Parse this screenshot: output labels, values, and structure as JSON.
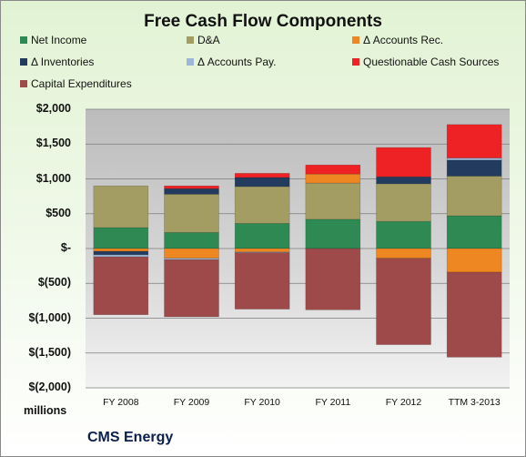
{
  "chart_data": {
    "type": "bar",
    "stacked": true,
    "title": "Free Cash Flow Components",
    "units_label": "millions",
    "company": "CMS Energy",
    "categories": [
      "FY 2008",
      "FY 2009",
      "FY 2010",
      "FY 2011",
      "FY 2012",
      "TTM 3-2013"
    ],
    "ylim": [
      -2000,
      2000
    ],
    "yticks": [
      {
        "value": 2000,
        "label": "$2,000"
      },
      {
        "value": 1500,
        "label": "$1,500"
      },
      {
        "value": 1000,
        "label": "$1,000"
      },
      {
        "value": 500,
        "label": "$500"
      },
      {
        "value": 0,
        "label": "$-"
      },
      {
        "value": -500,
        "label": "$(500)"
      },
      {
        "value": -1000,
        "label": "$(1,000)"
      },
      {
        "value": -1500,
        "label": "$(1,500)"
      },
      {
        "value": -2000,
        "label": "$(2,000)"
      }
    ],
    "grid": true,
    "legend_position": "top",
    "series": [
      {
        "name": "Net Income",
        "color": "#2e8a52",
        "values": [
          300,
          230,
          360,
          420,
          390,
          470
        ]
      },
      {
        "name": "D&A",
        "color": "#a39d63",
        "values": [
          600,
          550,
          530,
          520,
          540,
          570
        ]
      },
      {
        "name": "Δ Accounts Rec.",
        "color": "#ee8621",
        "values": [
          -40,
          -140,
          -50,
          130,
          -140,
          -340
        ]
      },
      {
        "name": "Δ Inventories",
        "color": "#223b5e",
        "values": [
          -50,
          80,
          130,
          0,
          100,
          230
        ]
      },
      {
        "name": "Δ Accounts Pay.",
        "color": "#9db7d9",
        "values": [
          -30,
          -20,
          -10,
          0,
          0,
          30
        ]
      },
      {
        "name": "Questionable Cash Sources",
        "color": "#ee2224",
        "values": [
          0,
          40,
          60,
          130,
          420,
          480
        ]
      },
      {
        "name": "Capital Expenditures",
        "color": "#9e4a4a",
        "values": [
          -830,
          -820,
          -810,
          -880,
          -1240,
          -1220
        ]
      }
    ]
  }
}
